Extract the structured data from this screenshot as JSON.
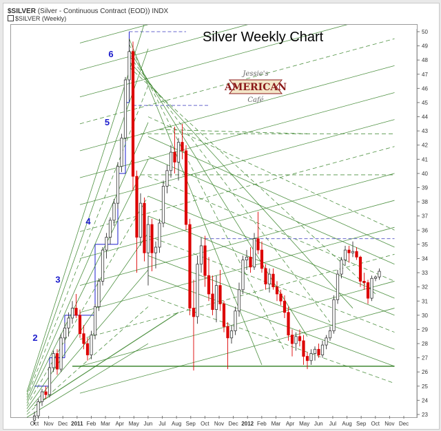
{
  "header": {
    "symbol": "$SILVER",
    "description": "(Silver - Continuous Contract (EOD))",
    "exchange": "INDX",
    "legend": "$SILVER (Weekly)"
  },
  "logo": {
    "line1": "Jessie's",
    "line2": "AMERICAN",
    "line3": "Café"
  },
  "chart_data": {
    "type": "candlestick",
    "title": "Silver Weekly Chart",
    "y_axis": {
      "position": "right",
      "min": 23,
      "max": 50,
      "ticks": [
        23,
        24,
        25,
        26,
        27,
        28,
        29,
        30,
        31,
        32,
        33,
        34,
        35,
        36,
        37,
        38,
        39,
        40,
        41,
        42,
        43,
        44,
        45,
        46,
        47,
        48,
        49,
        50
      ]
    },
    "x_tick_labels": [
      "Oct",
      "Nov",
      "Dec",
      "2011",
      "Feb",
      "Mar",
      "Apr",
      "May",
      "Jun",
      "Jul",
      "Aug",
      "Sep",
      "Oct",
      "Nov",
      "Dec",
      "2012",
      "Feb",
      "Mar",
      "Apr",
      "May",
      "Jun",
      "Jul",
      "Aug",
      "Sep",
      "Oct",
      "Nov",
      "Dec"
    ],
    "x_tick_bold": [
      "2011",
      "2012"
    ],
    "colors": {
      "up": "#ffffff",
      "down": "#dd0000",
      "grid": "#2e7d1f",
      "wave": "#1a1acc",
      "resistance": "#6666cc"
    },
    "wave_labels": [
      "2",
      "3",
      "4",
      "5",
      "6"
    ],
    "candles": [
      [
        22.6,
        23.2,
        22.3,
        22.9
      ],
      [
        22.9,
        24.1,
        22.7,
        23.9
      ],
      [
        23.9,
        24.8,
        23.6,
        24.6
      ],
      [
        24.6,
        25.0,
        24.1,
        24.4
      ],
      [
        24.4,
        26.6,
        24.2,
        26.3
      ],
      [
        26.3,
        27.5,
        26.0,
        27.3
      ],
      [
        27.3,
        27.6,
        25.8,
        26.2
      ],
      [
        26.2,
        28.7,
        26.0,
        28.4
      ],
      [
        28.4,
        29.5,
        28.0,
        29.1
      ],
      [
        29.1,
        30.2,
        28.5,
        29.8
      ],
      [
        29.8,
        31.0,
        29.4,
        30.5
      ],
      [
        30.5,
        31.5,
        29.8,
        30.0
      ],
      [
        30.0,
        30.4,
        28.4,
        28.7
      ],
      [
        28.7,
        29.3,
        27.6,
        28.0
      ],
      [
        28.0,
        28.4,
        26.8,
        27.2
      ],
      [
        27.2,
        28.9,
        26.9,
        28.6
      ],
      [
        28.6,
        30.8,
        28.3,
        30.6
      ],
      [
        30.6,
        32.6,
        30.3,
        32.4
      ],
      [
        32.4,
        34.8,
        32.1,
        34.6
      ],
      [
        34.6,
        35.8,
        34.0,
        35.5
      ],
      [
        35.5,
        36.9,
        35.0,
        36.7
      ],
      [
        36.7,
        38.2,
        36.3,
        37.9
      ],
      [
        37.9,
        40.8,
        37.5,
        40.5
      ],
      [
        40.5,
        42.8,
        40.1,
        42.5
      ],
      [
        42.5,
        46.8,
        42.2,
        46.6
      ],
      [
        46.6,
        49.5,
        45.2,
        48.6
      ],
      [
        48.6,
        49.3,
        38.8,
        39.8
      ],
      [
        39.8,
        40.2,
        33.0,
        35.5
      ],
      [
        35.5,
        38.6,
        34.9,
        37.9
      ],
      [
        37.9,
        38.3,
        33.8,
        34.4
      ],
      [
        34.4,
        37.0,
        32.1,
        36.4
      ],
      [
        36.4,
        36.8,
        33.1,
        34.4
      ],
      [
        34.4,
        35.2,
        33.3,
        34.8
      ],
      [
        34.8,
        36.8,
        34.4,
        36.5
      ],
      [
        36.5,
        39.5,
        36.2,
        39.1
      ],
      [
        39.1,
        40.6,
        38.6,
        40.2
      ],
      [
        40.2,
        42.0,
        39.7,
        41.5
      ],
      [
        41.5,
        43.3,
        40.0,
        40.8
      ],
      [
        40.8,
        42.5,
        39.5,
        42.2
      ],
      [
        42.2,
        43.5,
        41.0,
        41.6
      ],
      [
        41.6,
        42.0,
        36.0,
        36.4
      ],
      [
        36.4,
        36.8,
        30.0,
        30.5
      ],
      [
        30.5,
        32.5,
        26.1,
        29.9
      ],
      [
        29.9,
        34.2,
        29.4,
        33.6
      ],
      [
        33.6,
        35.5,
        33.0,
        34.9
      ],
      [
        34.9,
        35.6,
        32.0,
        32.8
      ],
      [
        32.8,
        34.1,
        31.0,
        31.5
      ],
      [
        31.5,
        32.8,
        30.0,
        30.4
      ],
      [
        30.4,
        32.8,
        29.5,
        32.1
      ],
      [
        32.1,
        33.2,
        30.3,
        30.8
      ],
      [
        30.8,
        31.0,
        28.8,
        29.2
      ],
      [
        29.2,
        29.5,
        26.2,
        28.4
      ],
      [
        28.4,
        29.3,
        28.0,
        28.9
      ],
      [
        28.9,
        30.6,
        28.6,
        30.3
      ],
      [
        30.3,
        32.3,
        29.9,
        31.8
      ],
      [
        31.8,
        34.2,
        31.5,
        33.9
      ],
      [
        33.9,
        34.6,
        33.2,
        34.1
      ],
      [
        34.1,
        34.8,
        33.0,
        33.4
      ],
      [
        33.4,
        35.8,
        33.2,
        35.4
      ],
      [
        35.4,
        37.3,
        34.3,
        34.6
      ],
      [
        34.6,
        35.2,
        33.0,
        33.3
      ],
      [
        33.3,
        33.6,
        31.8,
        32.2
      ],
      [
        32.2,
        33.3,
        31.6,
        32.9
      ],
      [
        32.9,
        33.3,
        31.8,
        32.0
      ],
      [
        32.0,
        32.4,
        31.0,
        31.5
      ],
      [
        31.5,
        31.8,
        30.7,
        31.0
      ],
      [
        31.0,
        31.4,
        29.8,
        30.2
      ],
      [
        30.2,
        30.6,
        28.2,
        28.6
      ],
      [
        28.6,
        29.0,
        27.1,
        28.0
      ],
      [
        28.0,
        28.8,
        27.5,
        28.5
      ],
      [
        28.5,
        29.0,
        27.8,
        28.2
      ],
      [
        28.2,
        28.6,
        26.5,
        27.1
      ],
      [
        27.1,
        27.4,
        26.2,
        26.8
      ],
      [
        26.8,
        27.6,
        26.5,
        27.3
      ],
      [
        27.3,
        27.8,
        26.8,
        27.6
      ],
      [
        27.6,
        28.0,
        27.0,
        27.2
      ],
      [
        27.2,
        28.2,
        27.0,
        27.9
      ],
      [
        27.9,
        28.6,
        27.6,
        28.4
      ],
      [
        28.4,
        29.2,
        28.2,
        28.9
      ],
      [
        28.9,
        31.4,
        28.7,
        31.1
      ],
      [
        31.1,
        33.2,
        30.8,
        32.9
      ],
      [
        32.9,
        34.1,
        32.6,
        33.9
      ],
      [
        33.9,
        34.9,
        33.5,
        34.6
      ],
      [
        34.6,
        34.9,
        33.7,
        34.4
      ],
      [
        34.4,
        35.2,
        34.1,
        34.5
      ],
      [
        34.5,
        34.8,
        33.9,
        34.1
      ],
      [
        34.1,
        34.2,
        32.0,
        32.4
      ],
      [
        32.4,
        33.0,
        31.8,
        32.3
      ],
      [
        32.3,
        32.5,
        30.8,
        31.2
      ],
      [
        31.2,
        32.8,
        31.0,
        32.6
      ],
      [
        32.6,
        32.8,
        32.4,
        32.7
      ],
      [
        32.7,
        33.3,
        32.5,
        33.1
      ]
    ]
  }
}
